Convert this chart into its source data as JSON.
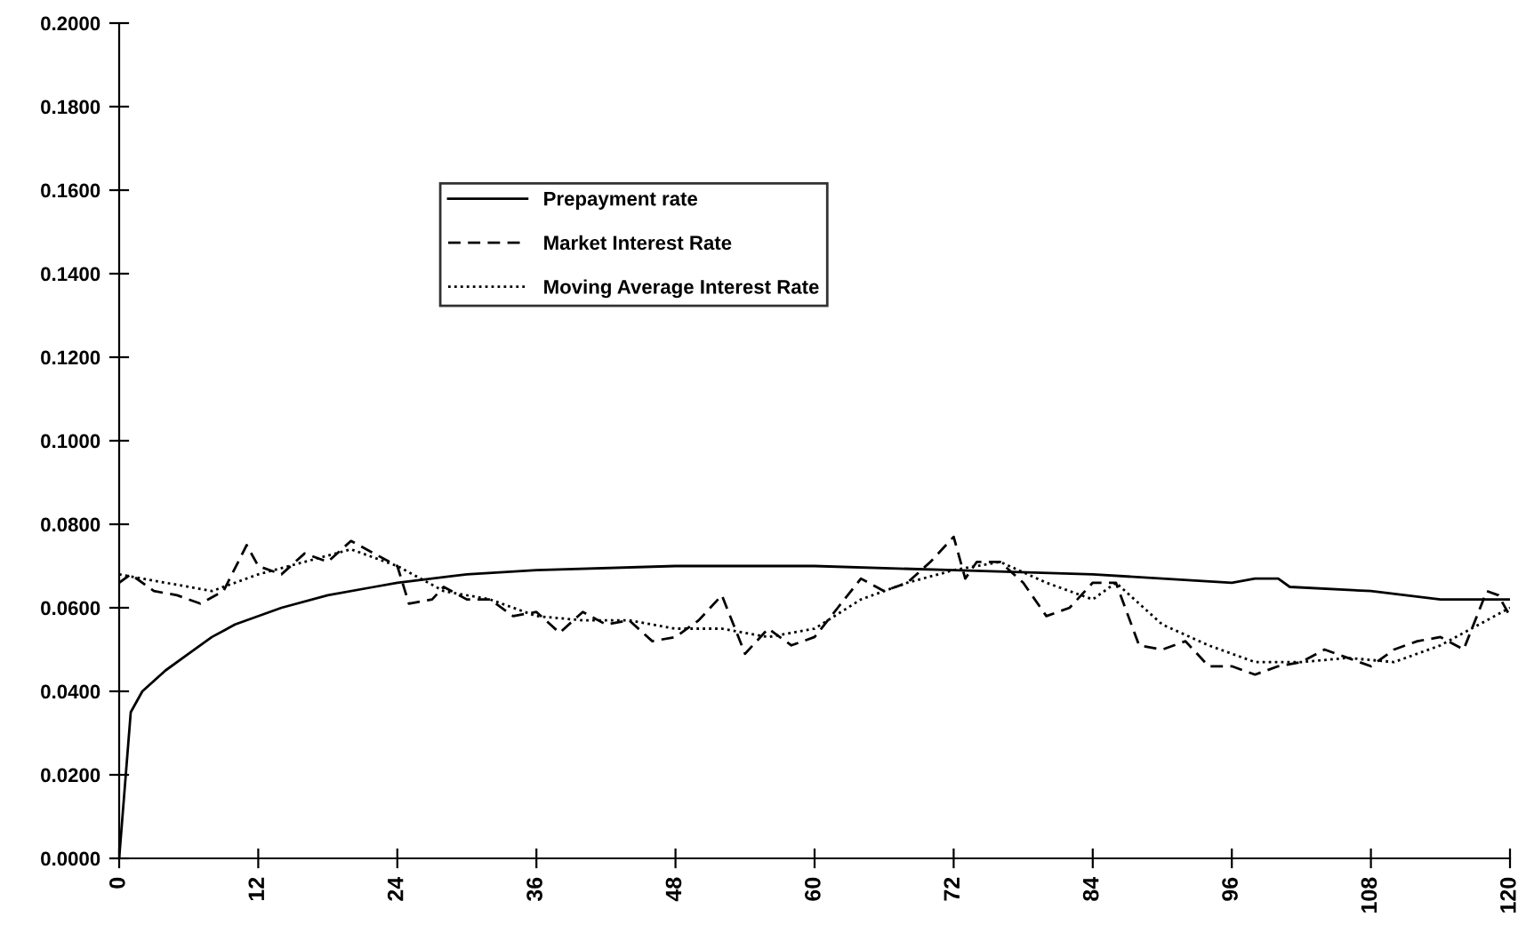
{
  "chart_data": {
    "type": "line",
    "legend": "top",
    "grid": false,
    "xlim": [
      0,
      120
    ],
    "ylim": [
      0,
      0.2
    ],
    "xticks": [
      0,
      12,
      24,
      36,
      48,
      60,
      72,
      84,
      96,
      108,
      120
    ],
    "yticks": [
      {
        "value": 0,
        "label": "0.0000"
      },
      {
        "value": 0.02,
        "label": "0.0200"
      },
      {
        "value": 0.04,
        "label": "0.0400"
      },
      {
        "value": 0.06,
        "label": "0.0600"
      },
      {
        "value": 0.08,
        "label": "0.0800"
      },
      {
        "value": 0.1,
        "label": "0.1000"
      },
      {
        "value": 0.12,
        "label": "0.1200"
      },
      {
        "value": 0.14,
        "label": "0.1400"
      },
      {
        "value": 0.16,
        "label": "0.1600"
      },
      {
        "value": 0.18,
        "label": "0.1800"
      },
      {
        "value": 0.2,
        "label": "0.2000"
      }
    ],
    "series": [
      {
        "name": "Prepayment rate",
        "color": "#000000",
        "line_style": "solid",
        "x": [
          0,
          1,
          2,
          4,
          6,
          8,
          10,
          14,
          18,
          22,
          24,
          30,
          36,
          48,
          60,
          72,
          84,
          96,
          98,
          100,
          101,
          108,
          114,
          120
        ],
        "values": [
          0,
          0.035,
          0.04,
          0.045,
          0.049,
          0.053,
          0.056,
          0.06,
          0.063,
          0.065,
          0.066,
          0.068,
          0.069,
          0.07,
          0.07,
          0.069,
          0.068,
          0.066,
          0.067,
          0.067,
          0.065,
          0.064,
          0.062,
          0.062
        ]
      },
      {
        "name": "Market Interest Rate",
        "color": "#000000",
        "line_style": "dashed",
        "x": [
          0,
          1,
          3,
          5,
          7,
          9,
          11,
          12,
          14,
          16,
          18,
          20,
          22,
          24,
          25,
          27,
          28,
          30,
          32,
          34,
          36,
          38,
          40,
          42,
          44,
          46,
          48,
          50,
          52,
          54,
          56,
          58,
          60,
          62,
          64,
          66,
          68,
          70,
          72,
          73,
          74,
          76,
          78,
          80,
          82,
          84,
          86,
          88,
          90,
          92,
          94,
          96,
          98,
          100,
          102,
          104,
          106,
          108,
          110,
          112,
          114,
          116,
          118,
          119,
          120
        ],
        "values": [
          0.066,
          0.068,
          0.064,
          0.063,
          0.061,
          0.064,
          0.075,
          0.07,
          0.068,
          0.073,
          0.071,
          0.076,
          0.073,
          0.07,
          0.061,
          0.062,
          0.065,
          0.062,
          0.062,
          0.058,
          0.059,
          0.054,
          0.059,
          0.056,
          0.057,
          0.052,
          0.053,
          0.057,
          0.063,
          0.049,
          0.055,
          0.051,
          0.053,
          0.06,
          0.067,
          0.064,
          0.066,
          0.071,
          0.077,
          0.067,
          0.071,
          0.071,
          0.066,
          0.058,
          0.06,
          0.066,
          0.066,
          0.051,
          0.05,
          0.052,
          0.046,
          0.046,
          0.044,
          0.046,
          0.047,
          0.05,
          0.048,
          0.046,
          0.05,
          0.052,
          0.053,
          0.05,
          0.064,
          0.063,
          0.058
        ]
      },
      {
        "name": "Moving Average Interest Rate",
        "color": "#000000",
        "line_style": "dotted",
        "x": [
          0,
          4,
          8,
          12,
          16,
          20,
          24,
          28,
          32,
          36,
          40,
          44,
          48,
          52,
          56,
          60,
          64,
          68,
          72,
          76,
          80,
          84,
          86,
          90,
          94,
          98,
          102,
          106,
          110,
          114,
          118,
          120
        ],
        "values": [
          0.068,
          0.066,
          0.064,
          0.068,
          0.071,
          0.074,
          0.07,
          0.064,
          0.062,
          0.058,
          0.057,
          0.057,
          0.055,
          0.055,
          0.053,
          0.055,
          0.062,
          0.066,
          0.069,
          0.071,
          0.066,
          0.062,
          0.066,
          0.056,
          0.051,
          0.047,
          0.047,
          0.048,
          0.047,
          0.051,
          0.057,
          0.06
        ]
      }
    ]
  }
}
